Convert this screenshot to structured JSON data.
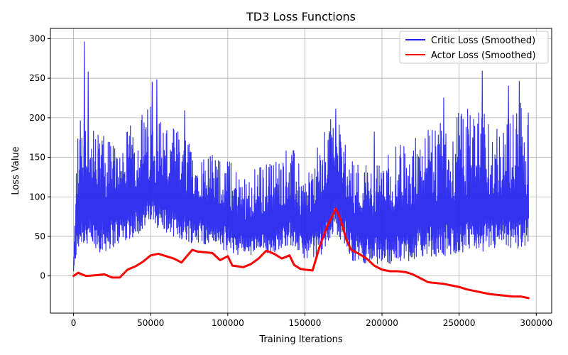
{
  "chart_data": {
    "type": "line",
    "title": "TD3 Loss Functions",
    "xlabel": "Training Iterations",
    "ylabel": "Loss Value",
    "xlim": [
      -15000,
      310000
    ],
    "ylim": [
      -47,
      313
    ],
    "xticks": [
      0,
      50000,
      100000,
      150000,
      200000,
      250000,
      300000
    ],
    "yticks": [
      0,
      50,
      100,
      150,
      200,
      250,
      300
    ],
    "grid": true,
    "legend_position": "top-right",
    "series": [
      {
        "name": "Critic Loss (Smoothed)",
        "color": "#2222ee",
        "style": "noisy-band",
        "x": [
          0,
          2000,
          5000,
          10000,
          20000,
          30000,
          40000,
          50000,
          60000,
          70000,
          80000,
          90000,
          100000,
          110000,
          120000,
          130000,
          140000,
          150000,
          160000,
          165000,
          170000,
          175000,
          180000,
          190000,
          200000,
          210000,
          220000,
          230000,
          240000,
          250000,
          260000,
          270000,
          280000,
          290000,
          295000
        ],
        "low": [
          5,
          25,
          40,
          30,
          30,
          40,
          50,
          65,
          55,
          45,
          40,
          40,
          30,
          25,
          25,
          30,
          40,
          22,
          25,
          40,
          55,
          40,
          20,
          15,
          15,
          15,
          20,
          25,
          25,
          28,
          30,
          32,
          32,
          35,
          40
        ],
        "mid": [
          10,
          80,
          110,
          105,
          95,
          105,
          110,
          120,
          110,
          100,
          100,
          90,
          85,
          70,
          75,
          75,
          95,
          65,
          90,
          110,
          140,
          110,
          80,
          75,
          75,
          80,
          85,
          90,
          95,
          95,
          100,
          100,
          100,
          100,
          100
        ],
        "high": [
          20,
          170,
          230,
          185,
          180,
          170,
          200,
          220,
          200,
          180,
          160,
          155,
          150,
          130,
          140,
          150,
          170,
          130,
          170,
          195,
          210,
          175,
          150,
          145,
          150,
          165,
          175,
          185,
          195,
          210,
          215,
          200,
          200,
          220,
          220
        ],
        "spikes": [
          [
            7000,
            296
          ],
          [
            9500,
            258
          ],
          [
            51000,
            245
          ],
          [
            54000,
            248
          ],
          [
            72000,
            209
          ],
          [
            170000,
            211
          ],
          [
            195000,
            182
          ],
          [
            240000,
            225
          ],
          [
            265000,
            259
          ],
          [
            282000,
            240
          ],
          [
            289000,
            246
          ]
        ]
      },
      {
        "name": "Actor Loss (Smoothed)",
        "color": "#ff0000",
        "style": "line",
        "x": [
          0,
          3000,
          8000,
          15000,
          20000,
          25000,
          30000,
          35000,
          40000,
          45000,
          50000,
          55000,
          60000,
          65000,
          70000,
          73000,
          77000,
          80000,
          85000,
          90000,
          95000,
          100000,
          103000,
          107000,
          110000,
          115000,
          120000,
          125000,
          130000,
          135000,
          140000,
          143000,
          147000,
          150000,
          155000,
          160000,
          165000,
          170000,
          173000,
          177000,
          180000,
          185000,
          190000,
          195000,
          200000,
          205000,
          210000,
          215000,
          220000,
          225000,
          230000,
          235000,
          240000,
          245000,
          250000,
          255000,
          260000,
          265000,
          270000,
          275000,
          280000,
          285000,
          290000,
          295000
        ],
        "y": [
          0,
          4,
          0,
          1,
          2,
          -2,
          -2,
          8,
          12,
          18,
          26,
          28,
          25,
          22,
          17,
          24,
          33,
          31,
          30,
          29,
          20,
          25,
          13,
          12,
          11,
          15,
          22,
          32,
          28,
          22,
          26,
          14,
          9,
          8,
          7,
          40,
          65,
          85,
          72,
          45,
          33,
          28,
          22,
          13,
          8,
          6,
          6,
          5,
          2,
          -3,
          -8,
          -9,
          -10,
          -12,
          -14,
          -17,
          -19,
          -21,
          -23,
          -24,
          -25,
          -26,
          -26,
          -28
        ]
      }
    ]
  }
}
